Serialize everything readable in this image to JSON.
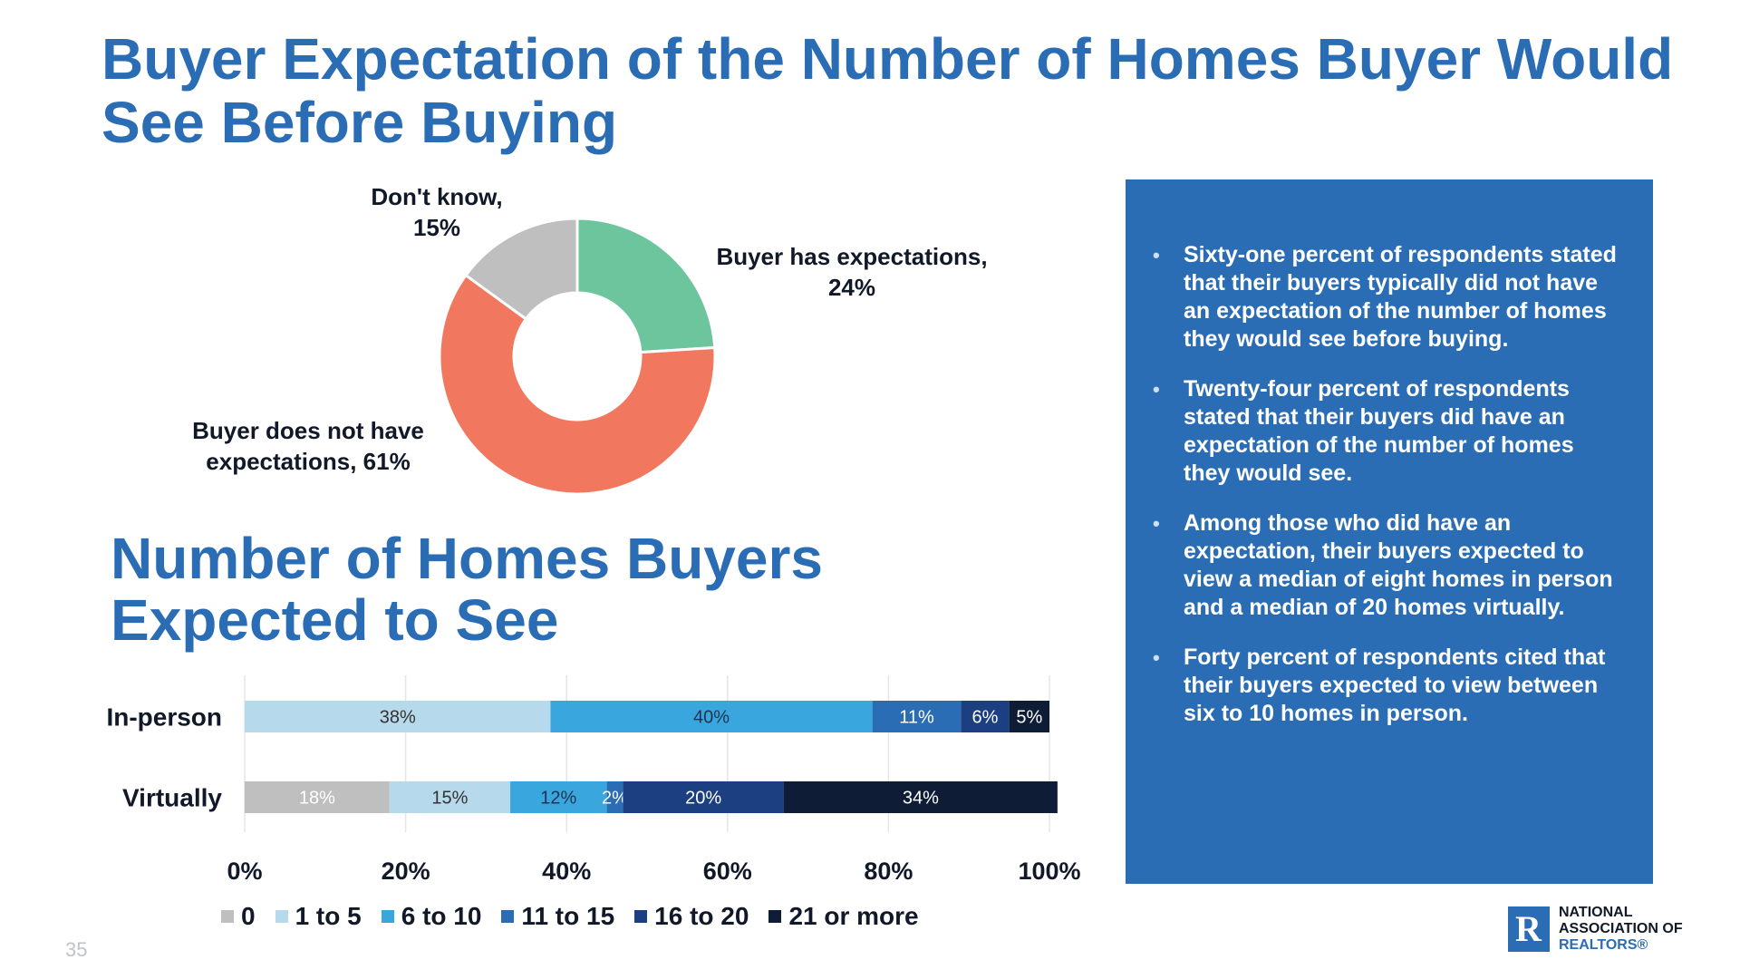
{
  "page": {
    "title": "Buyer Expectation of the Number of Homes Buyer Would See Before Buying",
    "page_number": "35"
  },
  "donut": {
    "labels": {
      "dont_know": "Don't know,\n15%",
      "has_expectations": "Buyer has expectations,\n24%",
      "no_expectations": "Buyer does not have\nexpectations, 61%"
    }
  },
  "bar_section": {
    "title": "Number of Homes Buyers Expected to See"
  },
  "panel": {
    "bullets": [
      "Sixty-one percent of respondents stated that their buyers typically did not have an expectation of the number of homes they would see before buying.",
      "Twenty-four percent of respondents stated that their buyers did have an expectation of the number of homes they would see.",
      "Among those who did have an expectation, their buyers expected to view a median of eight homes in person and a median of 20 homes virtually.",
      "Forty percent of respondents cited that their buyers expected to view between six to 10 homes in person."
    ]
  },
  "logo": {
    "mark": "R",
    "line1": "NATIONAL",
    "line2": "ASSOCIATION OF",
    "line3": "REALTORS®"
  },
  "chart_data": [
    {
      "type": "pie",
      "donut": true,
      "slices": [
        {
          "name": "Buyer has expectations",
          "value": 24,
          "color": "#6cc59c"
        },
        {
          "name": "Buyer does not have expectations",
          "value": 61,
          "color": "#f1775f"
        },
        {
          "name": "Don't know",
          "value": 15,
          "color": "#bfbfbf"
        }
      ]
    },
    {
      "type": "bar",
      "orientation": "horizontal",
      "stacked": true,
      "title": "Number of Homes Buyers Expected to See",
      "categories": [
        "In-person",
        "Virtually"
      ],
      "series": [
        {
          "name": "0",
          "values": [
            0,
            18
          ],
          "color": "#bfbfbf",
          "label_color": "#ffffff"
        },
        {
          "name": "1 to 5",
          "values": [
            38,
            15
          ],
          "color": "#b6d9ec",
          "label_color": "#333333"
        },
        {
          "name": "6 to 10",
          "values": [
            40,
            12
          ],
          "color": "#3aa6de",
          "label_color": "#1f3350"
        },
        {
          "name": "11 to 15",
          "values": [
            11,
            2
          ],
          "color": "#2a6db5",
          "label_color": "#ffffff"
        },
        {
          "name": "16 to 20",
          "values": [
            6,
            20
          ],
          "color": "#1b3f80",
          "label_color": "#ffffff"
        },
        {
          "name": "21 or more",
          "values": [
            5,
            34
          ],
          "color": "#0e1d35",
          "label_color": "#ffffff"
        }
      ],
      "xlim": [
        0,
        100
      ],
      "x_ticks": [
        "0%",
        "20%",
        "40%",
        "60%",
        "80%",
        "100%"
      ],
      "grid": true,
      "legend_position": "bottom"
    }
  ]
}
